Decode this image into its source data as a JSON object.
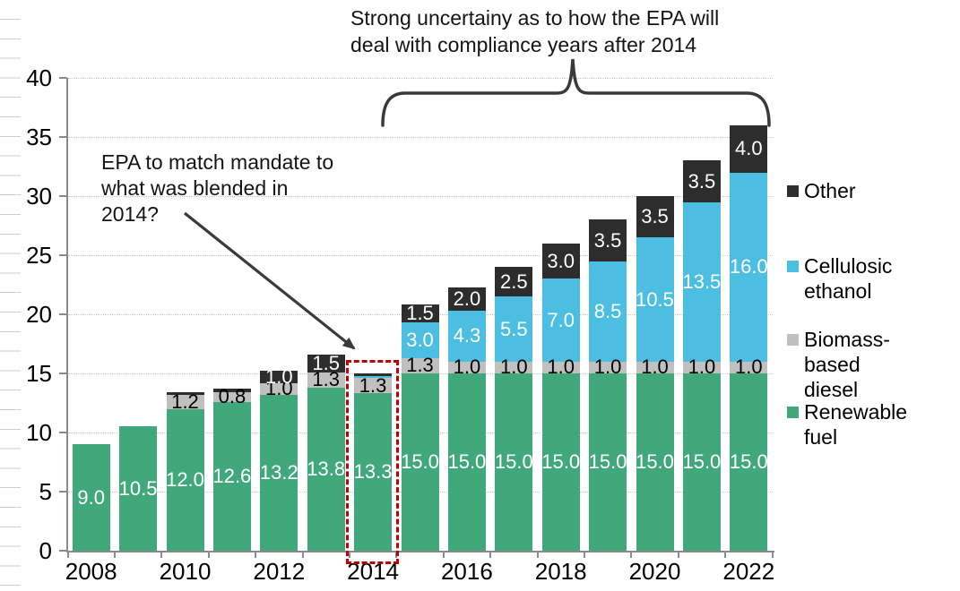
{
  "annotations": {
    "uncertainty_note": {
      "line1": "Strong uncertainy as to how the EPA will",
      "line2": "deal with compliance years after 2014"
    },
    "epa_note": {
      "line1": "EPA to match mandate to",
      "line2": "what was blended in",
      "line3": "2014?"
    }
  },
  "legend": [
    {
      "label": "Other",
      "color": "#2d2d2d"
    },
    {
      "label": "Cellulosic ethanol",
      "color": "#4bbee1"
    },
    {
      "label": "Biomass-based diesel",
      "color": "#c0c0c0"
    },
    {
      "label": "Renewable fuel",
      "color": "#41a87c"
    }
  ],
  "colors": {
    "highlight_box_red": "#c00000",
    "annotation_ink": "#3a3a3a",
    "axis_gray": "#8a8a8a"
  },
  "chart_data": {
    "type": "bar",
    "stacked": true,
    "title": "",
    "xlabel": "",
    "ylabel": "",
    "ylim": [
      0,
      40
    ],
    "yticks": [
      0,
      5,
      10,
      15,
      20,
      25,
      30,
      35,
      40
    ],
    "grid": "horizontal-dotted",
    "legend_position": "right",
    "categories": [
      "2008",
      "2009",
      "2010",
      "2011",
      "2012",
      "2013",
      "2014",
      "2015",
      "2016",
      "2017",
      "2018",
      "2019",
      "2020",
      "2021",
      "2022"
    ],
    "x_tick_labels": [
      "2008",
      "2010",
      "2012",
      "2014",
      "2016",
      "2018",
      "2020",
      "2022"
    ],
    "series": [
      {
        "key": "renewable-fuel",
        "name": "Renewable fuel",
        "color": "#41a87c",
        "label_color": "#ffffff",
        "values": [
          9.0,
          10.5,
          12.0,
          12.6,
          13.2,
          13.8,
          13.3,
          15.0,
          15.0,
          15.0,
          15.0,
          15.0,
          15.0,
          15.0,
          15.0
        ],
        "labels": [
          "9.0",
          "10.5",
          "12.0",
          "12.6",
          "13.2",
          "13.8",
          "13.3",
          "15.0",
          "15.0",
          "15.0",
          "15.0",
          "15.0",
          "15.0",
          "15.0",
          "15.0"
        ]
      },
      {
        "key": "biomass-based-diesel",
        "name": "Biomass-based diesel",
        "color": "#c0c0c0",
        "label_color": "#000000",
        "values": [
          0,
          0,
          1.2,
          0.8,
          1.0,
          1.3,
          1.3,
          1.3,
          1.0,
          1.0,
          1.0,
          1.0,
          1.0,
          1.0,
          1.0
        ],
        "labels": [
          null,
          null,
          "1.2",
          "0.8",
          "1.0",
          "1.3",
          "1.3",
          "1.3",
          "1.0",
          "1.0",
          "1.0",
          "1.0",
          "1.0",
          "1.0",
          "1.0"
        ]
      },
      {
        "key": "cellulosic-ethanol",
        "name": "Cellulosic ethanol",
        "color": "#4bbee1",
        "label_color": "#ffffff",
        "values": [
          0,
          0,
          0,
          0,
          0,
          0,
          0.15,
          3.0,
          4.3,
          5.5,
          7.0,
          8.5,
          10.5,
          13.5,
          16.0
        ],
        "labels": [
          null,
          null,
          null,
          null,
          null,
          null,
          null,
          "3.0",
          "4.3",
          "5.5",
          "7.0",
          "8.5",
          "10.5",
          "13.5",
          "16.0"
        ]
      },
      {
        "key": "other",
        "name": "Other",
        "color": "#2d2d2d",
        "label_color": "#ffffff",
        "values": [
          0,
          0,
          0.2,
          0.3,
          1.0,
          1.5,
          0.25,
          1.5,
          2.0,
          2.5,
          3.0,
          3.5,
          3.5,
          3.5,
          4.0
        ],
        "labels": [
          null,
          null,
          null,
          null,
          "1.0",
          "1.5",
          null,
          "1.5",
          "2.0",
          "2.5",
          "3.0",
          "3.5",
          "3.5",
          "3.5",
          "4.0"
        ]
      }
    ]
  }
}
